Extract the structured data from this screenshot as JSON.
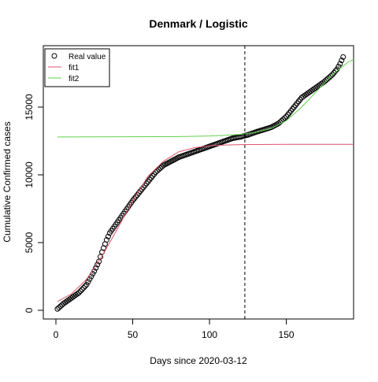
{
  "chart_data": {
    "type": "scatter",
    "title": "Denmark / Logistic",
    "xlabel": "Days since 2020-03-12",
    "ylabel": "Cumulative Confirmed cases",
    "xlim": [
      -8.2,
      193.8
    ],
    "ylim": [
      -640,
      19535
    ],
    "xticks": [
      0,
      50,
      100,
      150
    ],
    "yticks": [
      0,
      5000,
      10000,
      15000
    ],
    "vline": 123,
    "legend": "top-left",
    "series": [
      {
        "name": "Real value",
        "color": "#000000",
        "kind": "points",
        "x": [
          1,
          2,
          3,
          4,
          5,
          6,
          7,
          8,
          9,
          10,
          11,
          12,
          13,
          14,
          15,
          16,
          17,
          18,
          19,
          20,
          21,
          22,
          23,
          24,
          25,
          26,
          27,
          28,
          29,
          30,
          31,
          32,
          33,
          34,
          35,
          36,
          37,
          38,
          39,
          40,
          41,
          42,
          43,
          44,
          45,
          46,
          47,
          48,
          49,
          50,
          51,
          52,
          53,
          54,
          55,
          56,
          57,
          58,
          59,
          60,
          61,
          62,
          63,
          64,
          65,
          66,
          67,
          68,
          69,
          70,
          71,
          72,
          73,
          74,
          75,
          76,
          77,
          78,
          79,
          80,
          81,
          82,
          83,
          84,
          85,
          86,
          87,
          88,
          89,
          90,
          91,
          92,
          93,
          94,
          95,
          96,
          97,
          98,
          99,
          100,
          101,
          102,
          103,
          104,
          105,
          106,
          107,
          108,
          109,
          110,
          111,
          112,
          113,
          114,
          115,
          116,
          117,
          118,
          119,
          120,
          121,
          122,
          123,
          124,
          125,
          126,
          127,
          128,
          129,
          130,
          131,
          132,
          133,
          134,
          135,
          136,
          137,
          138,
          139,
          140,
          141,
          142,
          143,
          144,
          145,
          146,
          147,
          148,
          149,
          150,
          151,
          152,
          153,
          154,
          155,
          156,
          157,
          158,
          159,
          160,
          161,
          162,
          163,
          164,
          165,
          166,
          167,
          168,
          169,
          170,
          171,
          172,
          173,
          174,
          175,
          176,
          177,
          178,
          179,
          180,
          181,
          182,
          183,
          184,
          185,
          186,
          187
        ],
        "values": [
          100,
          200,
          300,
          400,
          500,
          580,
          660,
          740,
          820,
          900,
          980,
          1060,
          1140,
          1220,
          1300,
          1420,
          1540,
          1660,
          1780,
          1900,
          2100,
          2300,
          2500,
          2700,
          2900,
          3130,
          3370,
          3600,
          3950,
          4300,
          4600,
          4900,
          5200,
          5450,
          5700,
          5860,
          6020,
          6180,
          6340,
          6500,
          6660,
          6820,
          6980,
          7140,
          7300,
          7460,
          7620,
          7780,
          7940,
          8100,
          8240,
          8380,
          8520,
          8660,
          8800,
          8940,
          9080,
          9220,
          9360,
          9500,
          9640,
          9780,
          9920,
          10060,
          10200,
          10300,
          10400,
          10500,
          10600,
          10700,
          10760,
          10820,
          10880,
          10940,
          11000,
          11060,
          11120,
          11180,
          11240,
          11300,
          11340,
          11380,
          11420,
          11460,
          11500,
          11540,
          11580,
          11620,
          11660,
          11700,
          11740,
          11780,
          11820,
          11860,
          11900,
          11940,
          11980,
          12020,
          12060,
          12100,
          12140,
          12180,
          12220,
          12260,
          12300,
          12340,
          12380,
          12420,
          12460,
          12500,
          12540,
          12580,
          12620,
          12660,
          12700,
          12720,
          12740,
          12760,
          12780,
          12800,
          12830,
          12860,
          12890,
          12920,
          12950,
          12990,
          13030,
          13070,
          13110,
          13150,
          13190,
          13220,
          13260,
          13290,
          13330,
          13360,
          13400,
          13430,
          13470,
          13500,
          13560,
          13620,
          13680,
          13740,
          13800,
          13900,
          14000,
          14100,
          14200,
          14300,
          14440,
          14580,
          14720,
          14860,
          15000,
          15140,
          15280,
          15420,
          15560,
          15700,
          15780,
          15860,
          15940,
          16020,
          16100,
          16180,
          16260,
          16340,
          16420,
          16500,
          16580,
          16660,
          16740,
          16820,
          16900,
          17000,
          17100,
          17200,
          17300,
          17400,
          17530,
          17670,
          17800,
          18000,
          18200,
          18450,
          18700
        ]
      },
      {
        "name": "fit1",
        "color": "#DF536B",
        "kind": "line",
        "x": [
          1,
          10,
          20,
          30,
          40,
          50,
          60,
          70,
          80,
          90,
          100,
          110,
          120,
          150,
          195
        ],
        "values": [
          650,
          1200,
          2300,
          4000,
          6000,
          8100,
          9900,
          11000,
          11700,
          12000,
          12150,
          12200,
          12230,
          12250,
          12250
        ]
      },
      {
        "name": "fit2",
        "color": "#61D04F",
        "kind": "line",
        "x": [
          1,
          50,
          80,
          100,
          110,
          120,
          130,
          140,
          150,
          160,
          170,
          180,
          190,
          195
        ],
        "values": [
          12800,
          12810,
          12830,
          12870,
          12920,
          12990,
          13130,
          13420,
          14000,
          15000,
          16200,
          17400,
          18300,
          18600
        ]
      }
    ]
  }
}
